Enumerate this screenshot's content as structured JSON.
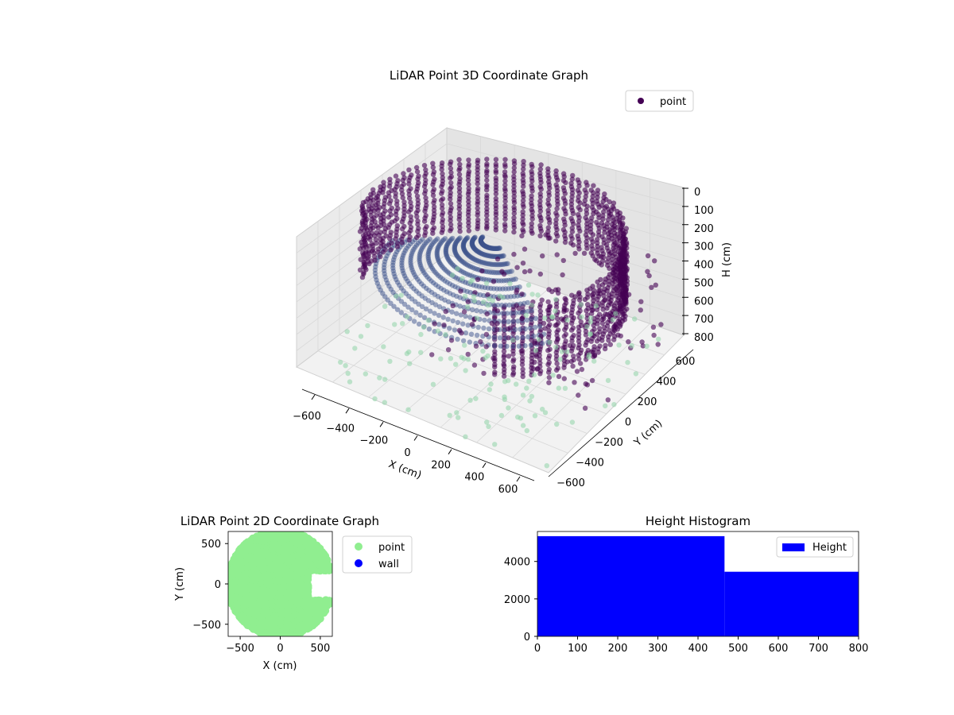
{
  "chart_data": [
    {
      "type": "scatter3d",
      "title": "LiDAR Point 3D Coordinate Graph",
      "xlabel": "X (cm)",
      "ylabel": "Y (cm)",
      "zlabel": "H (cm)",
      "xlim": [
        -650,
        650
      ],
      "ylim": [
        -650,
        650
      ],
      "zlim": [
        0,
        800
      ],
      "z_inverted": true,
      "xticks": [
        "−600",
        "−400",
        "−200",
        "0",
        "200",
        "400",
        "600"
      ],
      "yticks": [
        "−600",
        "−400",
        "−200",
        "0",
        "200",
        "400",
        "600"
      ],
      "zticks": [
        "0",
        "100",
        "200",
        "300",
        "400",
        "500",
        "600",
        "700",
        "800"
      ],
      "legend": {
        "entries": [
          "point"
        ],
        "placement": "top-right"
      },
      "grid": true,
      "series": [
        {
          "name": "point",
          "description_values": {
            "wall_ring_radius": 620,
            "wall_height_range": [
              0,
              800
            ],
            "floor_height": 800
          }
        }
      ],
      "colors": {
        "point": "#440154",
        "ceiling": "#3b528b",
        "floor": "#8fd3a8"
      }
    },
    {
      "type": "scatter",
      "title": "LiDAR Point 2D Coordinate Graph",
      "xlabel": "X (cm)",
      "ylabel": "Y (cm)",
      "xlim": [
        -650,
        650
      ],
      "ylim": [
        -650,
        650
      ],
      "xticks": [
        "−500",
        "0",
        "500"
      ],
      "yticks": [
        "−500",
        "0",
        "500"
      ],
      "legend": {
        "entries": [
          "point",
          "wall"
        ],
        "placement": "outside-right"
      },
      "series": [
        {
          "name": "point",
          "color": "#90ee90"
        },
        {
          "name": "wall",
          "color": "#0000ff"
        }
      ]
    },
    {
      "type": "bar",
      "title": "Height Histogram",
      "xlabel": "",
      "ylabel": "",
      "xlim": [
        0,
        800
      ],
      "ylim": [
        0,
        5600
      ],
      "xticks": [
        "0",
        "100",
        "200",
        "300",
        "400",
        "500",
        "600",
        "700",
        "800"
      ],
      "yticks": [
        "0",
        "2000",
        "4000"
      ],
      "legend": {
        "entries": [
          "Height"
        ],
        "placement": "top-right"
      },
      "bins": [
        {
          "from": 0,
          "to": 466,
          "count": 5350
        },
        {
          "from": 466,
          "to": 800,
          "count": 3450
        }
      ],
      "color": "#0000ff"
    }
  ]
}
